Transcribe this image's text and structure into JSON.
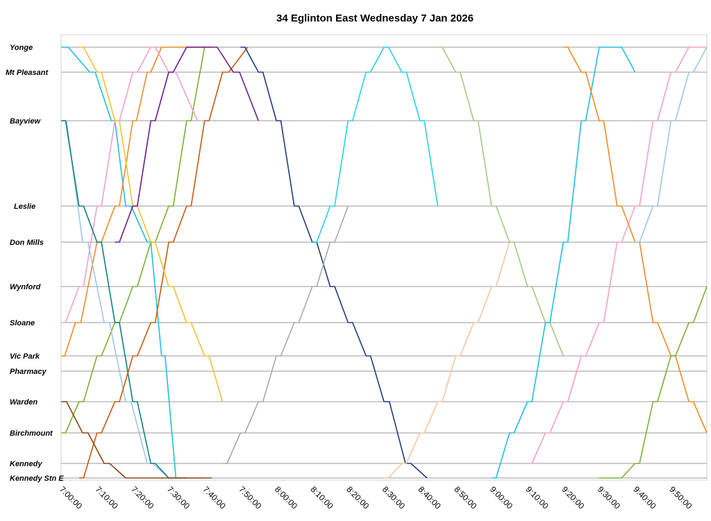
{
  "chart_data": {
    "type": "line",
    "title": "34 Eglinton East Wednesday 7 Jan 2026",
    "xlabel": "",
    "ylabel": "",
    "x_range": [
      "7:00:00",
      "10:00:00"
    ],
    "x_ticks": [
      "7:00:00",
      "7:10:00",
      "7:20:00",
      "7:30:00",
      "7:40:00",
      "7:50:00",
      "8:00:00",
      "8:10:00",
      "8:20:00",
      "8:30:00",
      "8:40:00",
      "8:50:00",
      "9:00:00",
      "9:10:00",
      "9:20:00",
      "9:30:00",
      "9:40:00",
      "9:50:00"
    ],
    "y_categories": [
      "Yonge",
      "Mt Pleasant",
      "Bayview",
      "Leslie",
      "Don Mills",
      "Wynford",
      "Sloane",
      "Vic Park",
      "Pharmacy",
      "Warden",
      "Birchmount",
      "Kennedy",
      "Kennedy Stn E"
    ],
    "grid": true,
    "legend": "none",
    "colors": [
      "#1fbfe0",
      "#f08a24",
      "#7ab030",
      "#9fc5e8",
      "#f4a0c8",
      "#0e7f7f",
      "#c55a11",
      "#8b4513",
      "#f2c12e",
      "#6a1b8a",
      "#1f3a80",
      "#a9a9a9",
      "#22d3e0",
      "#f7c59f",
      "#a3c982"
    ],
    "series": [
      {
        "x": [
          "7:00:00",
          "7:08:00",
          "7:14:00",
          "7:18:00",
          "7:24:00",
          "7:28:00",
          "7:32:00"
        ],
        "y": [
          "Yonge",
          "Mt Pleasant",
          "Bayview",
          "Leslie",
          "Don Mills",
          "Vic Park",
          "Kennedy Stn E"
        ]
      },
      {
        "x": [
          "7:00:00",
          "7:04:00",
          "7:10:00",
          "7:15:00",
          "7:20:00",
          "7:24:00",
          "7:28:00",
          "7:31:00",
          "7:35:00",
          "7:39:00",
          "7:42:00"
        ],
        "y": [
          "Vic Park",
          "Sloane",
          "Don Mills",
          "Leslie",
          "Bayview",
          "Mt Pleasant",
          "Yonge",
          "Yonge",
          "Yonge",
          "Yonge",
          "Yonge"
        ]
      },
      {
        "x": [
          "7:00:00",
          "7:05:00",
          "7:10:00",
          "7:15:00",
          "7:20:00",
          "7:25:00",
          "7:30:00",
          "7:35:00",
          "7:40:00"
        ],
        "y": [
          "Birchmount",
          "Warden",
          "Vic Park",
          "Sloane",
          "Wynford",
          "Don Mills",
          "Leslie",
          "Bayview",
          "Yonge"
        ]
      },
      {
        "x": [
          "7:00:00",
          "7:06:00",
          "7:12:00",
          "7:18:00",
          "7:24:00",
          "7:30:00",
          "7:36:00",
          "7:40:00"
        ],
        "y": [
          "Bayview",
          "Don Mills",
          "Sloane",
          "Warden",
          "Kennedy",
          "Kennedy Stn E",
          "Kennedy Stn E",
          "Kennedy Stn E"
        ]
      },
      {
        "x": [
          "7:00:00",
          "7:05:00",
          "7:10:00",
          "7:15:00",
          "7:20:00",
          "7:25:00",
          "7:30:00",
          "7:38:00"
        ],
        "y": [
          "Sloane",
          "Wynford",
          "Leslie",
          "Bayview",
          "Mt Pleasant",
          "Yonge",
          "Mt Pleasant",
          "Bayview"
        ]
      },
      {
        "x": [
          "7:00:00",
          "7:05:00",
          "7:10:00",
          "7:15:00",
          "7:20:00",
          "7:25:00",
          "7:30:00",
          "7:35:00"
        ],
        "y": [
          "Bayview",
          "Leslie",
          "Don Mills",
          "Sloane",
          "Warden",
          "Kennedy",
          "Kennedy Stn E",
          "Kennedy Stn E"
        ]
      },
      {
        "x": [
          "7:05:00",
          "7:10:00",
          "7:15:00",
          "7:20:00",
          "7:25:00",
          "7:30:00",
          "7:35:00",
          "7:40:00",
          "7:45:00",
          "7:52:00"
        ],
        "y": [
          "Kennedy Stn E",
          "Birchmount",
          "Warden",
          "Vic Park",
          "Sloane",
          "Don Mills",
          "Leslie",
          "Bayview",
          "Mt Pleasant",
          "Yonge"
        ]
      },
      {
        "x": [
          "7:00:00",
          "7:06:00",
          "7:12:00",
          "7:18:00",
          "7:24:00",
          "7:30:00",
          "7:36:00",
          "7:42:00"
        ],
        "y": [
          "Warden",
          "Birchmount",
          "Kennedy",
          "Kennedy Stn E",
          "Kennedy Stn E",
          "Kennedy Stn E",
          "Kennedy Stn E",
          "Kennedy Stn E"
        ]
      },
      {
        "x": [
          "7:05:00",
          "7:10:00",
          "7:15:00",
          "7:20:00",
          "7:25:00",
          "7:30:00",
          "7:35:00",
          "7:40:00",
          "7:45:00"
        ],
        "y": [
          "Yonge",
          "Mt Pleasant",
          "Bayview",
          "Leslie",
          "Don Mills",
          "Wynford",
          "Sloane",
          "Vic Park",
          "Warden"
        ]
      },
      {
        "x": [
          "7:15:00",
          "7:20:00",
          "7:25:00",
          "7:30:00",
          "7:35:00",
          "7:42:00",
          "7:48:00",
          "7:55:00"
        ],
        "y": [
          "Don Mills",
          "Leslie",
          "Bayview",
          "Mt Pleasant",
          "Yonge",
          "Yonge",
          "Mt Pleasant",
          "Bayview"
        ]
      },
      {
        "x": [
          "7:50:00",
          "7:55:00",
          "8:00:00",
          "8:05:00",
          "8:10:00",
          "8:15:00",
          "8:20:00",
          "8:25:00",
          "8:30:00",
          "8:36:00",
          "8:42:00"
        ],
        "y": [
          "Yonge",
          "Mt Pleasant",
          "Bayview",
          "Leslie",
          "Don Mills",
          "Wynford",
          "Sloane",
          "Vic Park",
          "Warden",
          "Kennedy",
          "Kennedy Stn E"
        ]
      },
      {
        "x": [
          "7:45:00",
          "7:50:00",
          "7:55:00",
          "8:00:00",
          "8:05:00",
          "8:10:00",
          "8:15:00",
          "8:20:00"
        ],
        "y": [
          "Kennedy",
          "Birchmount",
          "Warden",
          "Vic Park",
          "Sloane",
          "Wynford",
          "Don Mills",
          "Leslie"
        ]
      },
      {
        "x": [
          "8:10:00",
          "8:15:00",
          "8:20:00",
          "8:25:00",
          "8:30:00",
          "8:35:00",
          "8:40:00",
          "8:45:00"
        ],
        "y": [
          "Don Mills",
          "Leslie",
          "Bayview",
          "Mt Pleasant",
          "Yonge",
          "Mt Pleasant",
          "Bayview",
          "Leslie"
        ]
      },
      {
        "x": [
          "8:30:00",
          "8:35:00",
          "8:40:00",
          "8:45:00",
          "8:50:00",
          "8:55:00",
          "9:00:00",
          "9:05:00"
        ],
        "y": [
          "Kennedy Stn E",
          "Kennedy",
          "Birchmount",
          "Warden",
          "Vic Park",
          "Sloane",
          "Wynford",
          "Don Mills"
        ]
      },
      {
        "x": [
          "8:45:00",
          "8:50:00",
          "8:55:00",
          "9:00:00",
          "9:05:00",
          "9:10:00",
          "9:15:00",
          "9:20:00"
        ],
        "y": [
          "Yonge",
          "Mt Pleasant",
          "Bayview",
          "Leslie",
          "Don Mills",
          "Wynford",
          "Sloane",
          "Vic Park"
        ]
      },
      {
        "x": [
          "9:00:00",
          "9:05:00",
          "9:10:00",
          "9:15:00",
          "9:20:00",
          "9:25:00",
          "9:30:00",
          "9:35:00",
          "9:40:00"
        ],
        "y": [
          "Kennedy Stn E",
          "Birchmount",
          "Warden",
          "Sloane",
          "Don Mills",
          "Bayview",
          "Yonge",
          "Yonge",
          "Mt Pleasant"
        ]
      },
      {
        "x": [
          "9:20:00",
          "9:25:00",
          "9:30:00",
          "9:35:00",
          "9:40:00",
          "9:45:00",
          "9:50:00",
          "9:55:00",
          "10:00:00"
        ],
        "y": [
          "Yonge",
          "Mt Pleasant",
          "Bayview",
          "Leslie",
          "Don Mills",
          "Sloane",
          "Vic Park",
          "Warden",
          "Birchmount"
        ]
      },
      {
        "x": [
          "9:30:00",
          "9:35:00",
          "9:40:00",
          "9:45:00",
          "9:50:00",
          "9:55:00",
          "10:00:00"
        ],
        "y": [
          "Kennedy Stn E",
          "Kennedy Stn E",
          "Kennedy",
          "Warden",
          "Vic Park",
          "Sloane",
          "Wynford"
        ]
      },
      {
        "x": [
          "9:40:00",
          "9:45:00",
          "9:50:00",
          "9:55:00",
          "10:00:00"
        ],
        "y": [
          "Don Mills",
          "Leslie",
          "Bayview",
          "Mt Pleasant",
          "Yonge"
        ]
      },
      {
        "x": [
          "9:10:00",
          "9:15:00",
          "9:20:00",
          "9:25:00",
          "9:30:00",
          "9:35:00",
          "9:40:00",
          "9:45:00",
          "9:50:00",
          "9:55:00",
          "10:00:00"
        ],
        "y": [
          "Kennedy",
          "Birchmount",
          "Warden",
          "Vic Park",
          "Sloane",
          "Don Mills",
          "Leslie",
          "Bayview",
          "Mt Pleasant",
          "Yonge",
          "Yonge"
        ]
      }
    ]
  }
}
